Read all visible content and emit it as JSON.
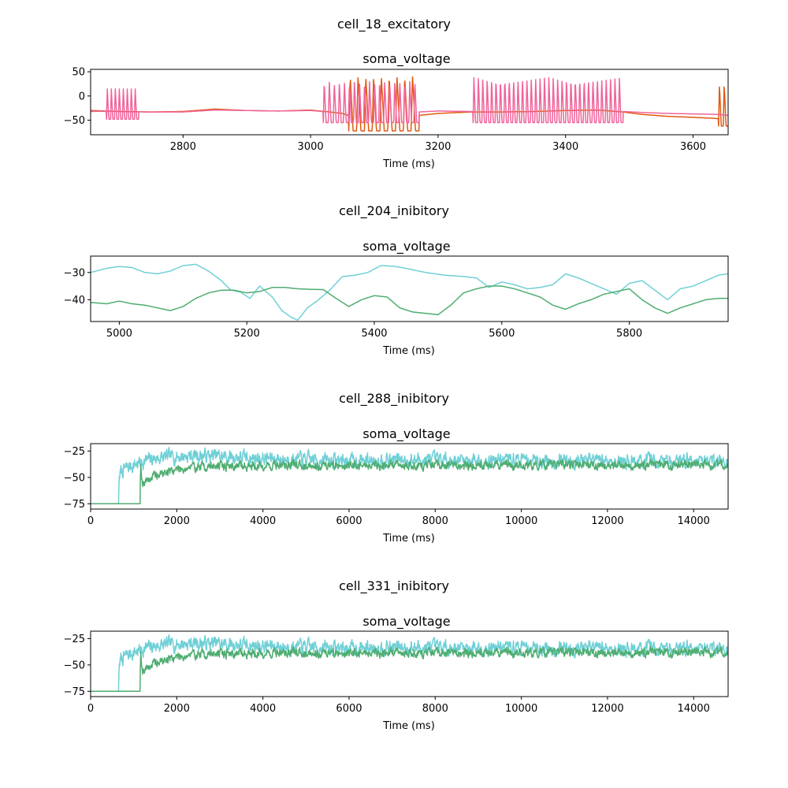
{
  "chart_data": [
    {
      "type": "line",
      "suptitle": "cell_18_excitatory",
      "title": "soma_voltage",
      "xlabel": "Time (ms)",
      "ylabel": "",
      "xlim": [
        2655,
        3655
      ],
      "ylim": [
        -80,
        55
      ],
      "xticks": [
        2800,
        3000,
        3200,
        3400,
        3600
      ],
      "yticks": [
        -50,
        0,
        50
      ],
      "grid": false,
      "legend": "none",
      "series": [
        {
          "color": "#e15a12",
          "x": [
            2655,
            2700,
            2750,
            2800,
            2850,
            2900,
            2950,
            3000,
            3030,
            3050,
            3070,
            3080,
            3100,
            3120,
            3140,
            3160,
            3170,
            3200,
            3250,
            3300,
            3350,
            3400,
            3450,
            3490,
            3520,
            3560,
            3600,
            3630,
            3655
          ],
          "y": [
            -30,
            -32,
            -33,
            -32,
            -27,
            -30,
            -31,
            -29,
            -33,
            -36,
            -45,
            -60,
            -72,
            -68,
            -66,
            -62,
            -40,
            -36,
            -33,
            -33,
            -32,
            -30,
            -29,
            -33,
            -38,
            -42,
            -44,
            -46,
            -48
          ],
          "bursts": [
            {
              "start": 3060,
              "end": 3170,
              "count": 9,
              "peak": 40,
              "trough": -72
            },
            {
              "start": 3640,
              "end": 3655,
              "count": 2,
              "peak": 25,
              "trough": -62
            }
          ]
        },
        {
          "color": "#f0649b",
          "x": [
            2655,
            2700,
            2740,
            2800,
            2850,
            2900,
            2950,
            3000,
            3020,
            3100,
            3170,
            3200,
            3250,
            3300,
            3350,
            3400,
            3450,
            3490,
            3520,
            3560,
            3600,
            3640,
            3655
          ],
          "y": [
            -32,
            -31,
            -33,
            -33,
            -29,
            -30,
            -31,
            -30,
            -32,
            -33,
            -33,
            -31,
            -32,
            -31,
            -30,
            -30,
            -29,
            -32,
            -34,
            -36,
            -37,
            -38,
            -40
          ],
          "bursts": [
            {
              "start": 2680,
              "end": 2730,
              "count": 8,
              "peak": 18,
              "trough": -48
            },
            {
              "start": 3020,
              "end": 3170,
              "count": 19,
              "peak": 30,
              "trough": -55
            },
            {
              "start": 3255,
              "end": 3490,
              "count": 34,
              "peak": 38,
              "trough": -55
            }
          ]
        }
      ]
    },
    {
      "type": "line",
      "suptitle": "cell_204_inibitory",
      "title": "soma_voltage",
      "xlabel": "Time (ms)",
      "ylabel": "",
      "xlim": [
        4955,
        5955
      ],
      "ylim": [
        -48,
        -24
      ],
      "xticks": [
        5000,
        5200,
        5400,
        5600,
        5800
      ],
      "yticks": [
        -30,
        -40
      ],
      "grid": false,
      "legend": "none",
      "series": [
        {
          "color": "#6fd0d6",
          "x": [
            4955,
            4980,
            5000,
            5020,
            5040,
            5060,
            5080,
            5100,
            5120,
            5140,
            5160,
            5175,
            5190,
            5205,
            5220,
            5240,
            5255,
            5270,
            5280,
            5295,
            5310,
            5330,
            5350,
            5370,
            5390,
            5410,
            5430,
            5450,
            5480,
            5510,
            5540,
            5560,
            5580,
            5600,
            5620,
            5640,
            5660,
            5680,
            5700,
            5720,
            5740,
            5760,
            5780,
            5800,
            5820,
            5840,
            5860,
            5880,
            5900,
            5920,
            5940,
            5955
          ],
          "y": [
            -30,
            -28.5,
            -27.8,
            -28.2,
            -30,
            -30.5,
            -29.5,
            -27.5,
            -27,
            -29.5,
            -33,
            -36.5,
            -37.2,
            -39.5,
            -35,
            -39,
            -44,
            -46.5,
            -47.5,
            -43,
            -40.5,
            -36.5,
            -31.5,
            -31,
            -30,
            -27.5,
            -27.7,
            -28.5,
            -30,
            -31,
            -31.5,
            -32,
            -35.5,
            -33.5,
            -34.5,
            -36,
            -35.5,
            -34.5,
            -30.5,
            -32,
            -34,
            -36,
            -38,
            -34,
            -33,
            -36.5,
            -40,
            -36,
            -35,
            -33,
            -31,
            -30.5
          ],
          "bursts": []
        },
        {
          "color": "#4fad71",
          "x": [
            4955,
            4980,
            5000,
            5020,
            5040,
            5060,
            5080,
            5100,
            5120,
            5140,
            5160,
            5180,
            5200,
            5220,
            5240,
            5260,
            5280,
            5300,
            5320,
            5340,
            5360,
            5380,
            5400,
            5420,
            5440,
            5460,
            5480,
            5500,
            5520,
            5540,
            5560,
            5580,
            5600,
            5620,
            5640,
            5660,
            5680,
            5700,
            5720,
            5740,
            5760,
            5780,
            5800,
            5820,
            5840,
            5860,
            5880,
            5900,
            5920,
            5940,
            5955
          ],
          "y": [
            -41,
            -41.5,
            -40.5,
            -41.5,
            -42,
            -43,
            -44,
            -42.5,
            -39.5,
            -37.5,
            -36.5,
            -36.5,
            -37.5,
            -37,
            -35.5,
            -35.5,
            -36,
            -36.2,
            -36.3,
            -39.5,
            -42.5,
            -40,
            -38.5,
            -39,
            -43,
            -44.5,
            -45,
            -45.5,
            -42,
            -37.5,
            -36,
            -35,
            -35,
            -36,
            -37.5,
            -39,
            -42,
            -43.5,
            -41.5,
            -40,
            -38,
            -37,
            -36,
            -40,
            -43,
            -45,
            -43,
            -41.5,
            -40,
            -39.5,
            -39.5
          ],
          "bursts": []
        }
      ]
    },
    {
      "type": "line",
      "suptitle": "cell_288_inibitory",
      "title": "soma_voltage",
      "xlabel": "Time (ms)",
      "ylabel": "",
      "xlim": [
        0,
        14800
      ],
      "ylim": [
        -80,
        -18
      ],
      "xticks": [
        0,
        2000,
        4000,
        6000,
        8000,
        10000,
        12000,
        14000
      ],
      "yticks": [
        -25,
        -50,
        -75
      ],
      "grid": false,
      "legend": "none",
      "series": [
        {
          "color": "#6fd0d6",
          "x": [
            0,
            650,
            660,
            700,
            800,
            1000,
            1200,
            1500,
            2000,
            2500,
            3000,
            4000,
            5000,
            6000,
            7000,
            8000,
            9000,
            10000,
            11000,
            12000,
            13000,
            14000,
            14800
          ],
          "y": [
            -75,
            -75,
            -50,
            -45,
            -42,
            -38,
            -35,
            -32,
            -30,
            -29,
            -30,
            -32,
            -33,
            -34,
            -33,
            -34,
            -33,
            -33,
            -34,
            -34,
            -35,
            -33,
            -34
          ],
          "noise": 6,
          "seed": 7
        },
        {
          "color": "#4fad71",
          "x": [
            0,
            1150,
            1160,
            1200,
            1400,
            1700,
            2000,
            2500,
            3000,
            4000,
            5000,
            6000,
            7000,
            8000,
            9000,
            10000,
            11000,
            12000,
            13000,
            14000,
            14800
          ],
          "y": [
            -75,
            -75,
            -35,
            -55,
            -50,
            -46,
            -42,
            -40,
            -39,
            -39,
            -38,
            -39,
            -38,
            -39,
            -38,
            -39,
            -38,
            -39,
            -38,
            -39,
            -39
          ],
          "noise": 4,
          "seed": 19
        }
      ]
    },
    {
      "type": "line",
      "suptitle": "cell_331_inibitory",
      "title": "soma_voltage",
      "xlabel": "Time (ms)",
      "ylabel": "",
      "xlim": [
        0,
        14800
      ],
      "ylim": [
        -80,
        -18
      ],
      "xticks": [
        0,
        2000,
        4000,
        6000,
        8000,
        10000,
        12000,
        14000
      ],
      "yticks": [
        -25,
        -50,
        -75
      ],
      "grid": false,
      "legend": "none",
      "series": [
        {
          "color": "#6fd0d6",
          "x": [
            0,
            650,
            660,
            700,
            800,
            1000,
            1200,
            1500,
            2000,
            2500,
            3000,
            4000,
            5000,
            6000,
            7000,
            8000,
            9000,
            10000,
            11000,
            12000,
            13000,
            14000,
            14800
          ],
          "y": [
            -75,
            -75,
            -50,
            -45,
            -42,
            -38,
            -35,
            -32,
            -30,
            -29,
            -30,
            -32,
            -33,
            -34,
            -33,
            -34,
            -33,
            -33,
            -34,
            -34,
            -35,
            -33,
            -34
          ],
          "noise": 6,
          "seed": 7
        },
        {
          "color": "#4fad71",
          "x": [
            0,
            1150,
            1160,
            1200,
            1400,
            1700,
            2000,
            2500,
            3000,
            4000,
            5000,
            6000,
            7000,
            8000,
            9000,
            10000,
            11000,
            12000,
            13000,
            14000,
            14800
          ],
          "y": [
            -75,
            -75,
            -35,
            -55,
            -50,
            -46,
            -42,
            -40,
            -39,
            -39,
            -38,
            -39,
            -38,
            -39,
            -38,
            -39,
            -38,
            -39,
            -38,
            -39,
            -39
          ],
          "noise": 4,
          "seed": 19
        }
      ]
    }
  ]
}
